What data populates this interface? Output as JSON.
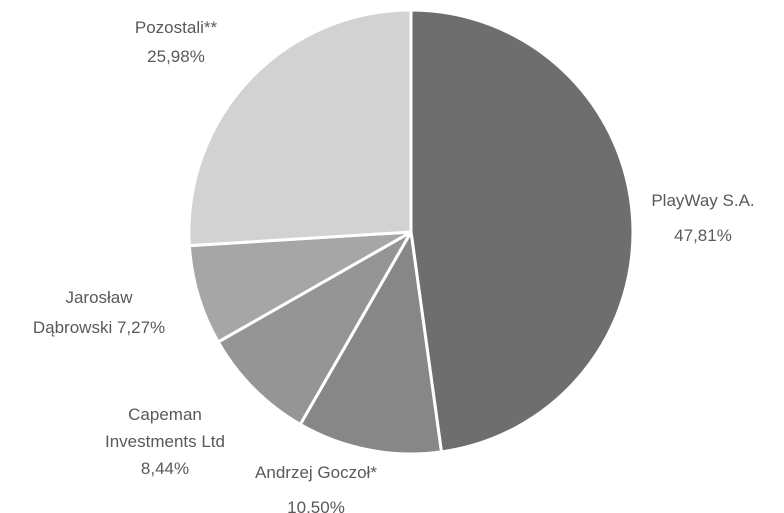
{
  "chart_data": {
    "type": "pie",
    "title": "",
    "slices": [
      {
        "name": "PlayWay S.A.",
        "value": 47.81,
        "label_lines": [
          "PlayWay S.A.",
          "47,81%"
        ],
        "color": "#6e6e6e"
      },
      {
        "name": "Andrzej Goczoł*",
        "value": 10.5,
        "label_lines": [
          "Andrzej Goczoł*",
          "10,50%"
        ],
        "color": "#878787"
      },
      {
        "name": "Capeman Investments Ltd",
        "value": 8.44,
        "label_lines": [
          "Capeman",
          "Investments Ltd",
          "8,44%"
        ],
        "color": "#959595"
      },
      {
        "name": "Jarosław Dąbrowski",
        "value": 7.27,
        "label_lines": [
          "Jarosław",
          "Dąbrowski 7,27%"
        ],
        "color": "#a6a6a6"
      },
      {
        "name": "Pozostali**",
        "value": 25.98,
        "label_lines": [
          "Pozostali**",
          "25,98%"
        ],
        "color": "#d2d2d2"
      }
    ],
    "start": "12 o'clock",
    "direction": "clockwise"
  }
}
